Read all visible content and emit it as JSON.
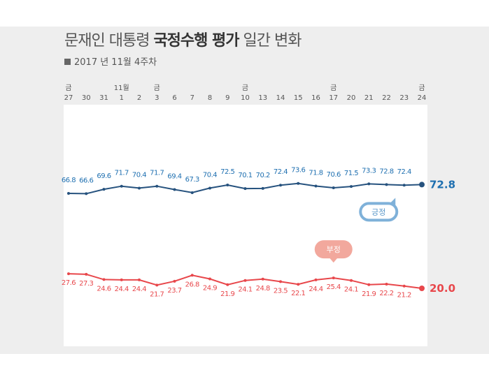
{
  "chart_data": {
    "type": "line",
    "title_parts": [
      "문재인 대통령",
      "국정수행 평가",
      "일간 변화"
    ],
    "subtitle": "2017 년 11월 4주차",
    "x": [
      "27",
      "30",
      "31",
      "1",
      "2",
      "3",
      "6",
      "7",
      "8",
      "9",
      "10",
      "13",
      "14",
      "15",
      "16",
      "17",
      "20",
      "21",
      "22",
      "23",
      "24"
    ],
    "x_top_labels": [
      "금",
      "",
      "",
      "11월",
      "",
      "금",
      "",
      "",
      "",
      "",
      "금",
      "",
      "",
      "",
      "",
      "금",
      "",
      "",
      "",
      "",
      "금"
    ],
    "series": [
      {
        "name": "긍정",
        "color": "#1e6fb0",
        "values": [
          66.8,
          66.6,
          69.6,
          71.7,
          70.4,
          71.7,
          69.4,
          67.3,
          70.4,
          72.5,
          70.1,
          70.2,
          72.4,
          73.6,
          71.8,
          70.6,
          71.5,
          73.3,
          72.8,
          72.4,
          72.8
        ],
        "labels": [
          "66.8",
          "66.6",
          "69.6",
          "71.7",
          "70.4",
          "71.7",
          "69.4",
          "67.3",
          "70.4",
          "72.5",
          "70.1",
          "70.2",
          "72.4",
          "73.6",
          "71.8",
          "70.6",
          "71.5",
          "73.3",
          "72.8",
          "72.4",
          ""
        ],
        "end_label": "72.8"
      },
      {
        "name": "부정",
        "color": "#e8474b",
        "values": [
          27.6,
          27.3,
          24.6,
          24.4,
          24.4,
          21.7,
          23.7,
          26.8,
          24.9,
          21.9,
          24.1,
          24.8,
          23.5,
          22.1,
          24.4,
          25.4,
          24.1,
          21.9,
          22.2,
          21.2,
          20.0
        ],
        "labels": [
          "27.6",
          "27.3",
          "24.6",
          "24.4",
          "24.4",
          "21.7",
          "23.7",
          "26.8",
          "24.9",
          "21.9",
          "24.1",
          "24.8",
          "23.5",
          "22.1",
          "24.4",
          "25.4",
          "24.1",
          "21.9",
          "22.2",
          "21.2",
          ""
        ],
        "end_label": "20.0"
      }
    ]
  }
}
